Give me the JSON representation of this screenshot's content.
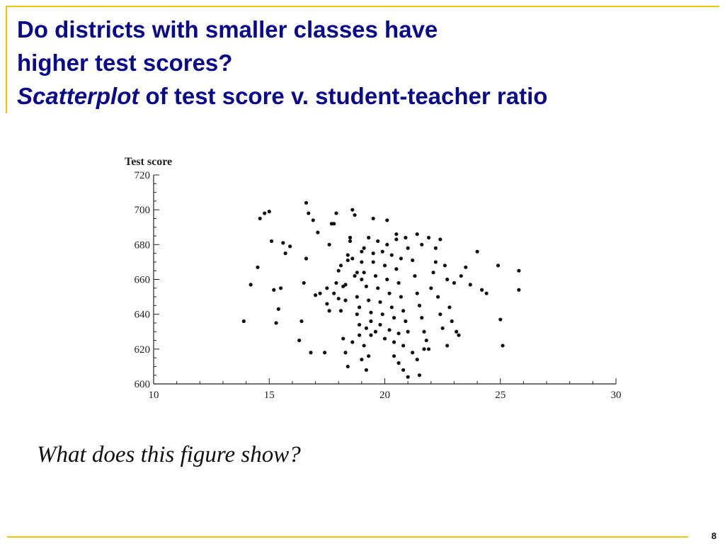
{
  "slide": {
    "title_line1": "Do districts with smaller classes have",
    "title_line2": "higher test scores?",
    "title_line3_italic": "Scatterplot",
    "title_line3_rest": " of test score v. student-teacher ratio",
    "question": "What does this figure show?",
    "page_number": "8",
    "accent_color": "#f2c300",
    "title_color": "#0a0a8c"
  },
  "chart_data": {
    "type": "scatter",
    "title": "",
    "xlabel": "",
    "ylabel": "Test score",
    "xlim": [
      10,
      30
    ],
    "ylim": [
      600,
      720
    ],
    "xticks": [
      10,
      15,
      20,
      25,
      30
    ],
    "yticks": [
      600,
      620,
      640,
      660,
      680,
      700,
      720
    ],
    "grid": false,
    "points": [
      [
        13.9,
        636
      ],
      [
        14.2,
        657
      ],
      [
        14.5,
        667
      ],
      [
        14.6,
        695
      ],
      [
        14.8,
        698
      ],
      [
        15.0,
        699
      ],
      [
        15.1,
        682
      ],
      [
        15.2,
        654
      ],
      [
        15.3,
        635
      ],
      [
        15.4,
        643
      ],
      [
        15.5,
        655
      ],
      [
        15.6,
        681
      ],
      [
        15.7,
        675
      ],
      [
        15.9,
        679
      ],
      [
        16.3,
        625
      ],
      [
        16.4,
        636
      ],
      [
        16.5,
        658
      ],
      [
        16.6,
        672
      ],
      [
        16.6,
        704
      ],
      [
        16.7,
        698
      ],
      [
        16.8,
        618
      ],
      [
        16.9,
        694
      ],
      [
        17.0,
        651
      ],
      [
        17.1,
        687
      ],
      [
        17.2,
        652
      ],
      [
        17.4,
        618
      ],
      [
        17.5,
        655
      ],
      [
        17.6,
        680
      ],
      [
        17.7,
        692
      ],
      [
        17.8,
        692
      ],
      [
        17.9,
        698
      ],
      [
        18.0,
        649
      ],
      [
        18.1,
        642
      ],
      [
        18.2,
        626
      ],
      [
        18.3,
        657
      ],
      [
        18.4,
        671
      ],
      [
        18.5,
        682
      ],
      [
        18.6,
        700
      ],
      [
        18.7,
        697
      ],
      [
        18.8,
        664
      ],
      [
        18.9,
        634
      ],
      [
        17.5,
        646
      ],
      [
        17.6,
        642
      ],
      [
        17.8,
        652
      ],
      [
        17.9,
        658
      ],
      [
        18.0,
        665
      ],
      [
        18.1,
        668
      ],
      [
        18.2,
        656
      ],
      [
        18.3,
        648
      ],
      [
        18.4,
        674
      ],
      [
        18.5,
        684
      ],
      [
        18.6,
        672
      ],
      [
        18.7,
        662
      ],
      [
        18.8,
        650
      ],
      [
        18.9,
        644
      ],
      [
        19.0,
        676
      ],
      [
        19.0,
        660
      ],
      [
        18.3,
        618
      ],
      [
        18.4,
        610
      ],
      [
        18.6,
        624
      ],
      [
        18.8,
        640
      ],
      [
        18.9,
        628
      ],
      [
        19.0,
        614
      ],
      [
        19.1,
        622
      ],
      [
        19.2,
        608
      ],
      [
        19.3,
        616
      ],
      [
        19.4,
        628
      ],
      [
        19.0,
        670
      ],
      [
        19.1,
        664
      ],
      [
        19.2,
        656
      ],
      [
        19.3,
        648
      ],
      [
        19.4,
        641
      ],
      [
        19.5,
        670
      ],
      [
        19.6,
        662
      ],
      [
        19.7,
        655
      ],
      [
        19.8,
        647
      ],
      [
        19.9,
        640
      ],
      [
        20.0,
        668
      ],
      [
        20.1,
        660
      ],
      [
        20.2,
        652
      ],
      [
        20.3,
        644
      ],
      [
        20.4,
        638
      ],
      [
        20.5,
        666
      ],
      [
        20.6,
        658
      ],
      [
        20.7,
        650
      ],
      [
        20.8,
        642
      ],
      [
        20.9,
        636
      ],
      [
        19.1,
        678
      ],
      [
        19.3,
        684
      ],
      [
        19.5,
        675
      ],
      [
        19.7,
        682
      ],
      [
        19.9,
        676
      ],
      [
        20.1,
        680
      ],
      [
        20.3,
        674
      ],
      [
        20.5,
        686
      ],
      [
        20.7,
        672
      ],
      [
        20.9,
        684
      ],
      [
        19.2,
        632
      ],
      [
        19.4,
        636
      ],
      [
        19.6,
        630
      ],
      [
        19.8,
        634
      ],
      [
        20.0,
        626
      ],
      [
        20.2,
        631
      ],
      [
        20.4,
        624
      ],
      [
        20.6,
        629
      ],
      [
        20.8,
        622
      ],
      [
        21.0,
        630
      ],
      [
        19.5,
        695
      ],
      [
        20.1,
        694
      ],
      [
        20.5,
        683
      ],
      [
        21.0,
        678
      ],
      [
        21.2,
        671
      ],
      [
        21.3,
        662
      ],
      [
        21.4,
        652
      ],
      [
        21.5,
        645
      ],
      [
        21.6,
        638
      ],
      [
        21.7,
        630
      ],
      [
        21.8,
        625
      ],
      [
        21.9,
        620
      ],
      [
        22.0,
        655
      ],
      [
        22.1,
        664
      ],
      [
        22.2,
        670
      ],
      [
        22.3,
        650
      ],
      [
        22.4,
        640
      ],
      [
        22.5,
        632
      ],
      [
        22.6,
        668
      ],
      [
        22.7,
        660
      ],
      [
        20.4,
        616
      ],
      [
        20.6,
        612
      ],
      [
        20.8,
        608
      ],
      [
        21.0,
        604
      ],
      [
        21.2,
        618
      ],
      [
        21.4,
        614
      ],
      [
        21.5,
        605
      ],
      [
        21.7,
        620
      ],
      [
        21.4,
        686
      ],
      [
        21.6,
        680
      ],
      [
        21.9,
        684
      ],
      [
        22.2,
        678
      ],
      [
        22.4,
        683
      ],
      [
        22.8,
        644
      ],
      [
        23.0,
        658
      ],
      [
        23.1,
        630
      ],
      [
        23.3,
        662
      ],
      [
        23.5,
        667
      ],
      [
        23.7,
        657
      ],
      [
        24.0,
        676
      ],
      [
        24.2,
        654
      ],
      [
        24.4,
        652
      ],
      [
        22.9,
        636
      ],
      [
        22.7,
        622
      ],
      [
        23.2,
        628
      ],
      [
        24.9,
        668
      ],
      [
        25.0,
        637
      ],
      [
        25.1,
        622
      ],
      [
        25.8,
        665
      ],
      [
        25.8,
        654
      ]
    ]
  }
}
